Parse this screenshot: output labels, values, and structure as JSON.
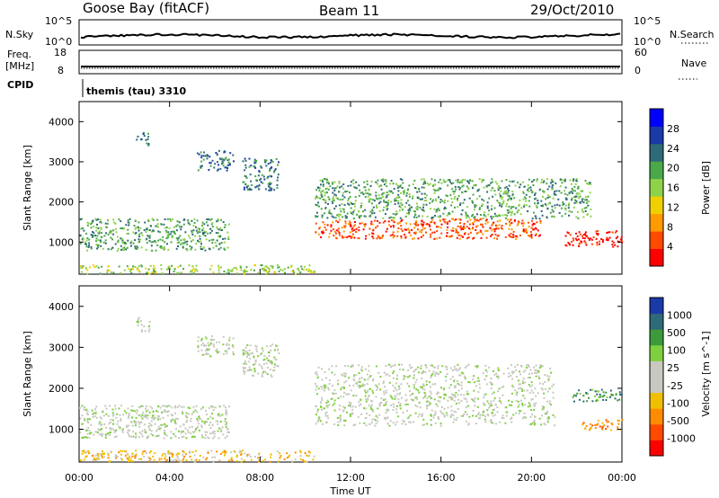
{
  "header": {
    "title": "Goose Bay (fitACF)",
    "beam": "Beam 11",
    "date": "29/Oct/2010"
  },
  "top_panels": {
    "nsky_label": "N.Sky",
    "nsearch_label": "N.Search",
    "nsky_ticks": [
      "10^5",
      "10^0"
    ],
    "nsearch_ticks": [
      "10^5",
      "10^0"
    ],
    "freq_label": "Freq.",
    "freq_unit": "[MHz]",
    "freq_ticks": [
      "18",
      "8"
    ],
    "nave_label": "Nave",
    "nave_ticks": [
      "60",
      "0"
    ],
    "cpid_label": "CPID",
    "cpid_value": "themis (tau) 3310"
  },
  "chart_data": [
    {
      "type": "heatmap",
      "panel": "power",
      "xlabel": "",
      "ylabel": "Slant Range [km]",
      "ylim": [
        200,
        4500
      ],
      "yticks": [
        1000,
        2000,
        3000,
        4000
      ],
      "xlim": [
        0,
        24
      ],
      "colorbar_label": "Power [dB]",
      "colorbar_ticks": [
        28,
        24,
        20,
        16,
        12,
        8,
        4
      ],
      "colors": [
        "#0000ff",
        "#1a3aa8",
        "#2f6a78",
        "#4aa84a",
        "#8fd24a",
        "#f0d000",
        "#ff9a00",
        "#ff4a00",
        "#ff0000"
      ],
      "features": [
        {
          "x0": 0.0,
          "x1": 10.4,
          "y0": 220,
          "y1": 450,
          "level": 4
        },
        {
          "x0": 0.0,
          "x1": 6.6,
          "y0": 800,
          "y1": 1600,
          "level": 3
        },
        {
          "x0": 2.5,
          "x1": 3.1,
          "y0": 3400,
          "y1": 3750,
          "level": 2
        },
        {
          "x0": 5.2,
          "x1": 6.8,
          "y0": 2800,
          "y1": 3300,
          "level": 2
        },
        {
          "x0": 7.2,
          "x1": 8.8,
          "y0": 2300,
          "y1": 3100,
          "level": 2
        },
        {
          "x0": 10.4,
          "x1": 20.4,
          "y0": 1100,
          "y1": 1600,
          "level": 7
        },
        {
          "x0": 10.4,
          "x1": 22.6,
          "y0": 1600,
          "y1": 2600,
          "level": 3
        },
        {
          "x0": 21.4,
          "x1": 24.0,
          "y0": 900,
          "y1": 1300,
          "level": 8
        }
      ]
    },
    {
      "type": "heatmap",
      "panel": "velocity",
      "xlabel": "Time UT",
      "ylabel": "Slant Range [km]",
      "ylim": [
        200,
        4500
      ],
      "yticks": [
        1000,
        2000,
        3000,
        4000
      ],
      "xlim": [
        0,
        24
      ],
      "xticks": [
        "00:00",
        "04:00",
        "08:00",
        "12:00",
        "16:00",
        "20:00",
        "00:00"
      ],
      "colorbar_label": "Velocity [m s^-1]",
      "colorbar_ticks": [
        1000,
        500,
        100,
        25,
        -25,
        -100,
        -500,
        -1000
      ],
      "colors": [
        "#1a3aa8",
        "#2f6a78",
        "#3c9a3c",
        "#7ed03e",
        "#c8c8c0",
        "#c8c8c0",
        "#f0c000",
        "#ff8c00",
        "#ff4a00",
        "#ff0000"
      ],
      "features": [
        {
          "x0": 0.0,
          "x1": 10.4,
          "y0": 220,
          "y1": 500,
          "level": 6
        },
        {
          "x0": 0.0,
          "x1": 6.6,
          "y0": 800,
          "y1": 1600,
          "level": 4
        },
        {
          "x0": 2.5,
          "x1": 3.1,
          "y0": 3400,
          "y1": 3750,
          "level": 4
        },
        {
          "x0": 5.2,
          "x1": 6.8,
          "y0": 2800,
          "y1": 3300,
          "level": 4
        },
        {
          "x0": 7.2,
          "x1": 8.8,
          "y0": 2300,
          "y1": 3100,
          "level": 4
        },
        {
          "x0": 10.4,
          "x1": 21.0,
          "y0": 1100,
          "y1": 2600,
          "level": 4
        },
        {
          "x0": 21.8,
          "x1": 24.0,
          "y0": 1700,
          "y1": 2000,
          "level": 2
        },
        {
          "x0": 22.0,
          "x1": 24.0,
          "y0": 1000,
          "y1": 1250,
          "level": 7
        }
      ]
    }
  ]
}
